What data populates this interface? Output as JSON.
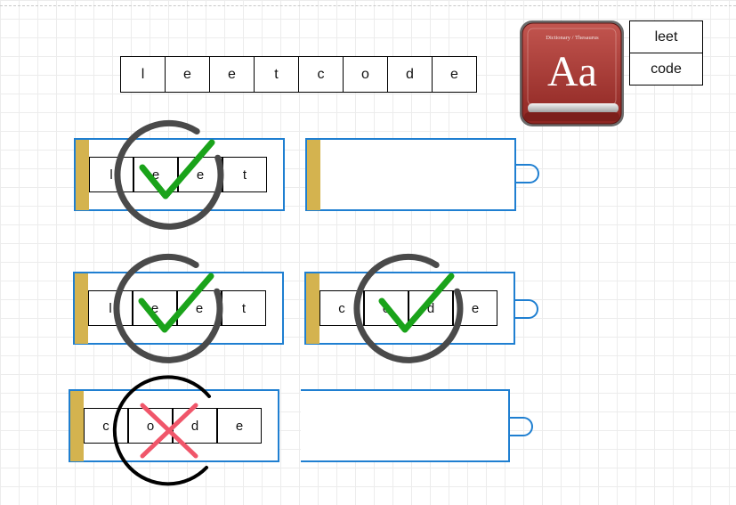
{
  "target": {
    "letters": [
      "l",
      "e",
      "e",
      "t",
      "c",
      "o",
      "d",
      "e"
    ]
  },
  "dictionary": {
    "icon_title": "Dictionary / Thesaurus",
    "icon_glyph": "Aa",
    "words": [
      "leet",
      "code"
    ]
  },
  "trie_steps": [
    {
      "word": [
        "l",
        "e",
        "e",
        "t"
      ],
      "result": "match"
    },
    {
      "word": [
        "l",
        "e",
        "e",
        "t"
      ],
      "result": "match"
    },
    {
      "word": [
        "c",
        "o",
        "d",
        "e"
      ],
      "result": "match"
    },
    {
      "word": [
        "c",
        "o",
        "d",
        "e"
      ],
      "result": "no-match"
    }
  ],
  "colors": {
    "box_border": "#1f7fd1",
    "tab_fill": "#d4b34f",
    "check": "#1aa31a",
    "cross": "#f0566a",
    "ring": "#4a4a4a",
    "ring_fail": "#000000"
  }
}
